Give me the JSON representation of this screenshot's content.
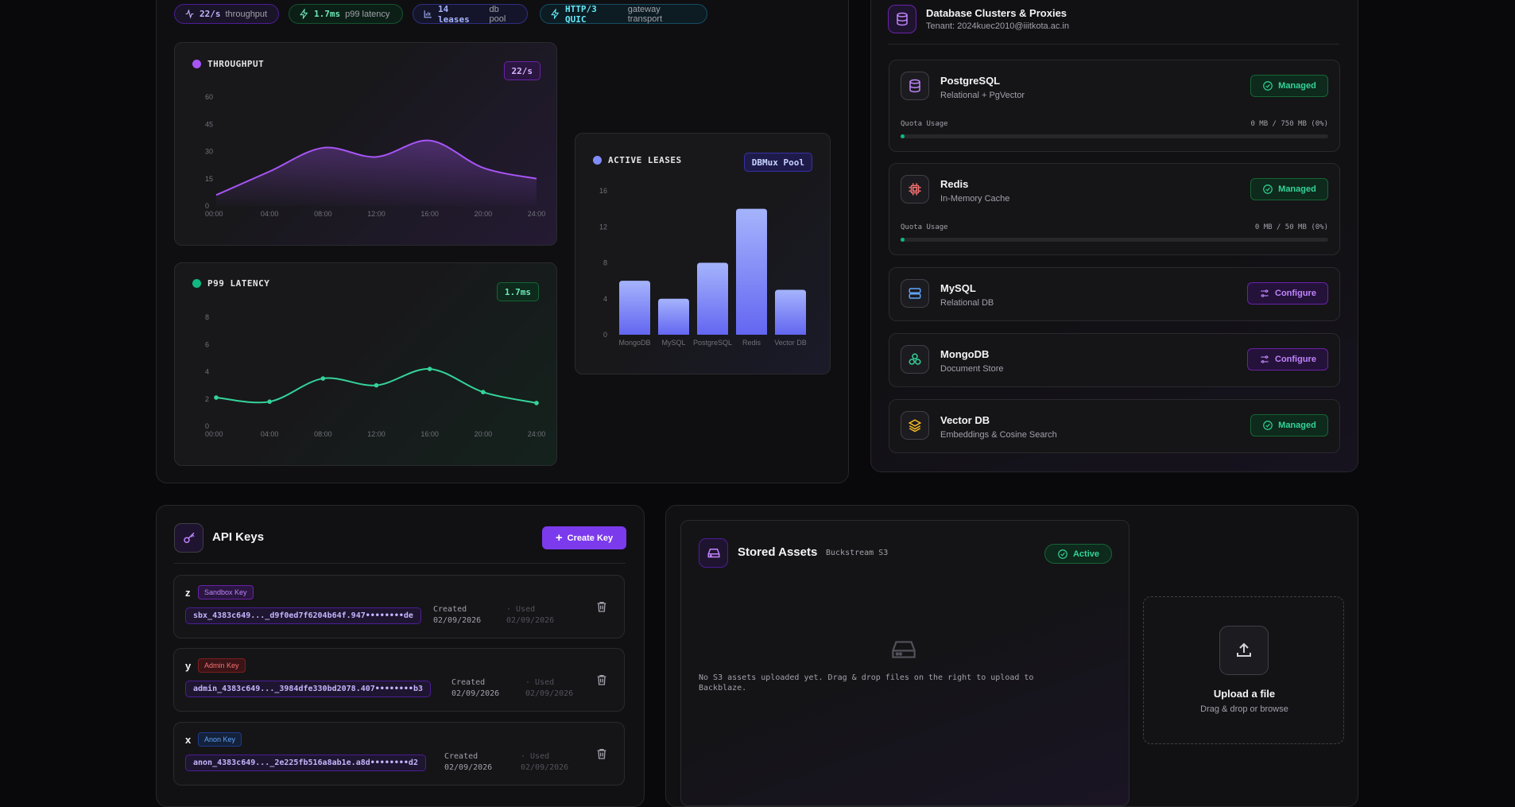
{
  "metrics": [
    {
      "icon": "activity-icon",
      "value": "22/s",
      "label": "throughput",
      "color": "#c4b5fd",
      "border": "#4c1d95",
      "bg": "#1a1428"
    },
    {
      "icon": "bolt-icon",
      "value": "1.7ms",
      "label": "p99 latency",
      "color": "#6ee7b7",
      "border": "#14532d",
      "bg": "#0c1f17"
    },
    {
      "icon": "bar-chart-icon",
      "value": "14 leases",
      "label": "db pool",
      "color": "#a5b4fc",
      "border": "#312e81",
      "bg": "#14152a"
    },
    {
      "icon": "bolt-icon",
      "value": "HTTP/3 QUIC",
      "label": "gateway transport",
      "color": "#67e8f9",
      "border": "#164e63",
      "bg": "#0c1c22"
    }
  ],
  "throughput": {
    "title": "THROUGHPUT",
    "badge": "22/s",
    "color": "#a855f7",
    "chart_data": {
      "type": "area",
      "x": [
        "00:00",
        "04:00",
        "08:00",
        "12:00",
        "16:00",
        "20:00",
        "24:00"
      ],
      "values": [
        6,
        19,
        32,
        27,
        36,
        21,
        15
      ],
      "yticks": [
        "60",
        "45",
        "30",
        "15",
        "0"
      ],
      "ylim": [
        0,
        60
      ]
    }
  },
  "latency": {
    "title": "P99 LATENCY",
    "badge": "1.7ms",
    "color": "#34d399",
    "chart_data": {
      "type": "line",
      "x": [
        "00:00",
        "04:00",
        "08:00",
        "12:00",
        "16:00",
        "20:00",
        "24:00"
      ],
      "values": [
        2.1,
        1.8,
        3.5,
        3.0,
        4.2,
        2.5,
        1.7
      ],
      "yticks": [
        "8",
        "6",
        "4",
        "2",
        "0"
      ],
      "ylim": [
        0,
        8
      ]
    }
  },
  "leases": {
    "title": "ACTIVE LEASES",
    "badge": "DBMux Pool",
    "color": "#818cf8",
    "chart_data": {
      "type": "bar",
      "categories": [
        "MongoDB",
        "MySQL",
        "PostgreSQL",
        "Redis",
        "Vector DB"
      ],
      "values": [
        6,
        4,
        8,
        14,
        5
      ],
      "yticks": [
        "16",
        "12",
        "8",
        "4",
        "0"
      ],
      "ylim": [
        0,
        16
      ]
    }
  },
  "databases": {
    "title": "Database Clusters & Proxies",
    "tenant": "Tenant: 2024kuec2010@iiitkota.ac.in",
    "items": [
      {
        "name": "PostgreSQL",
        "sub": "Relational + PgVector",
        "icon": "database-icon",
        "icon_color": "#c084fc",
        "action": "Managed",
        "quota_label": "Quota Usage",
        "quota_value": "0 MB / 750 MB (0%)",
        "quota_pct": 0
      },
      {
        "name": "Redis",
        "sub": "In-Memory Cache",
        "icon": "chip-icon",
        "icon_color": "#f87171",
        "action": "Managed",
        "quota_label": "Quota Usage",
        "quota_value": "0 MB / 50 MB (0%)",
        "quota_pct": 0
      },
      {
        "name": "MySQL",
        "sub": "Relational DB",
        "icon": "server-icon",
        "icon_color": "#60a5fa",
        "action": "Configure"
      },
      {
        "name": "MongoDB",
        "sub": "Document Store",
        "icon": "cluster-icon",
        "icon_color": "#34d399",
        "action": "Configure"
      },
      {
        "name": "Vector DB",
        "sub": "Embeddings & Cosine Search",
        "icon": "layers-icon",
        "icon_color": "#fbbf24",
        "action": "Managed"
      }
    ]
  },
  "api_keys": {
    "title": "API Keys",
    "create_label": "Create Key",
    "keys": [
      {
        "name": "z",
        "type": "Sandbox Key",
        "type_color": "#c084fc",
        "type_bg": "#2a1640",
        "type_border": "#6b21a8",
        "value": "sbx_4383c649..._d9f0ed7f6204b64f.947••••••••de",
        "created_label": "Created",
        "created": "02/09/2026",
        "used_label": "· Used",
        "used": "02/09/2026"
      },
      {
        "name": "y",
        "type": "Admin Key",
        "type_color": "#f87171",
        "type_bg": "#3a1416",
        "type_border": "#7f1d1d",
        "value": "admin_4383c649..._3984dfe330bd2078.407••••••••b3",
        "created_label": "Created",
        "created": "02/09/2026",
        "used_label": "· Used",
        "used": "02/09/2026"
      },
      {
        "name": "x",
        "type": "Anon Key",
        "type_color": "#60a5fa",
        "type_bg": "#13213a",
        "type_border": "#1e3a8a",
        "value": "anon_4383c649..._2e225fb516a8ab1e.a8d••••••••d2",
        "created_label": "Created",
        "created": "02/09/2026",
        "used_label": "· Used",
        "used": "02/09/2026"
      }
    ]
  },
  "assets": {
    "title": "Stored Assets",
    "provider": "Buckstream S3",
    "status": "Active",
    "empty_text": "No S3 assets uploaded yet. Drag & drop files on the right to upload to Backblaze.",
    "upload_title": "Upload a file",
    "upload_sub": "Drag & drop or browse"
  }
}
